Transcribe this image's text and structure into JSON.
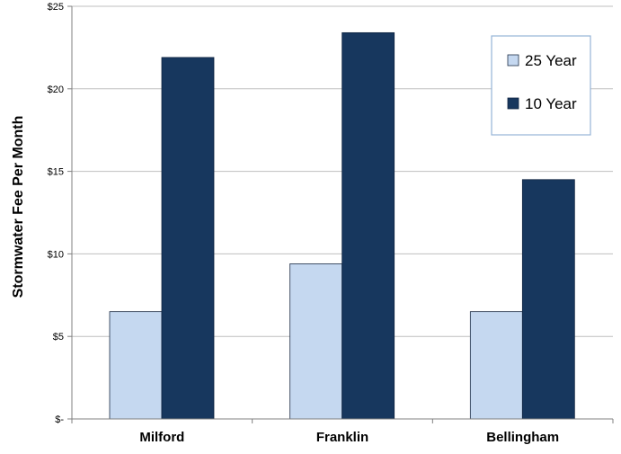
{
  "chart_data": {
    "type": "bar",
    "title": "",
    "xlabel": "",
    "ylabel": "Stormwater Fee Per Month",
    "categories": [
      "Milford",
      "Franklin",
      "Bellingham"
    ],
    "series": [
      {
        "name": "25 Year",
        "values": [
          6.5,
          9.4,
          6.5
        ],
        "color": "#c5d8f0"
      },
      {
        "name": "10 Year",
        "values": [
          21.9,
          23.4,
          14.5
        ],
        "color": "#17375e"
      }
    ],
    "ylim": [
      0,
      25
    ],
    "yticks": [
      {
        "value": 0,
        "label": "$-"
      },
      {
        "value": 5,
        "label": "$5"
      },
      {
        "value": 10,
        "label": "$10"
      },
      {
        "value": 15,
        "label": "$15"
      },
      {
        "value": 20,
        "label": "$20"
      },
      {
        "value": 25,
        "label": "$25"
      }
    ],
    "grid": true,
    "legend_position": "top-right"
  }
}
